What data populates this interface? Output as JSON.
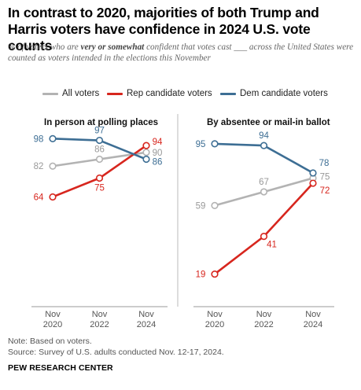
{
  "title": "In contrast to 2020, majorities of both Trump and Harris voters have confidence in 2024 U.S. vote counts",
  "subtitle_pre": "% of voters who are ",
  "subtitle_em": "very or somewhat",
  "subtitle_post": " confident that votes cast ___ across the United States were counted as voters intended in the elections this November",
  "note": "Note: Based on voters.",
  "source": "Source: Survey of U.S. adults conducted Nov. 12-17, 2024.",
  "brand": "PEW RESEARCH CENTER",
  "colors": {
    "all": "#b3b3b3",
    "rep": "#d7261e",
    "dem": "#3d6e94"
  },
  "chart_data": [
    {
      "type": "line",
      "title": "In person at polling places",
      "x": [
        "Nov 2020",
        "Nov 2022",
        "Nov 2024"
      ],
      "x_lines": [
        [
          "Nov",
          "2020"
        ],
        [
          "Nov",
          "2022"
        ],
        [
          "Nov",
          "2024"
        ]
      ],
      "ylim": [
        0,
        100
      ],
      "grid": false,
      "legend": "top",
      "series": [
        {
          "name": "All voters",
          "values": [
            82,
            86,
            90
          ]
        },
        {
          "name": "Rep candidate voters",
          "values": [
            64,
            75,
            94
          ]
        },
        {
          "name": "Dem candidate voters",
          "values": [
            98,
            97,
            86
          ]
        }
      ]
    },
    {
      "type": "line",
      "title": "By absentee or mail-in ballot",
      "x": [
        "Nov 2020",
        "Nov 2022",
        "Nov 2024"
      ],
      "x_lines": [
        [
          "Nov",
          "2020"
        ],
        [
          "Nov",
          "2022"
        ],
        [
          "Nov",
          "2024"
        ]
      ],
      "ylim": [
        0,
        100
      ],
      "grid": false,
      "legend": "top",
      "series": [
        {
          "name": "All voters",
          "values": [
            59,
            67,
            75
          ]
        },
        {
          "name": "Rep candidate voters",
          "values": [
            19,
            41,
            72
          ]
        },
        {
          "name": "Dem candidate voters",
          "values": [
            95,
            94,
            78
          ]
        }
      ]
    }
  ]
}
